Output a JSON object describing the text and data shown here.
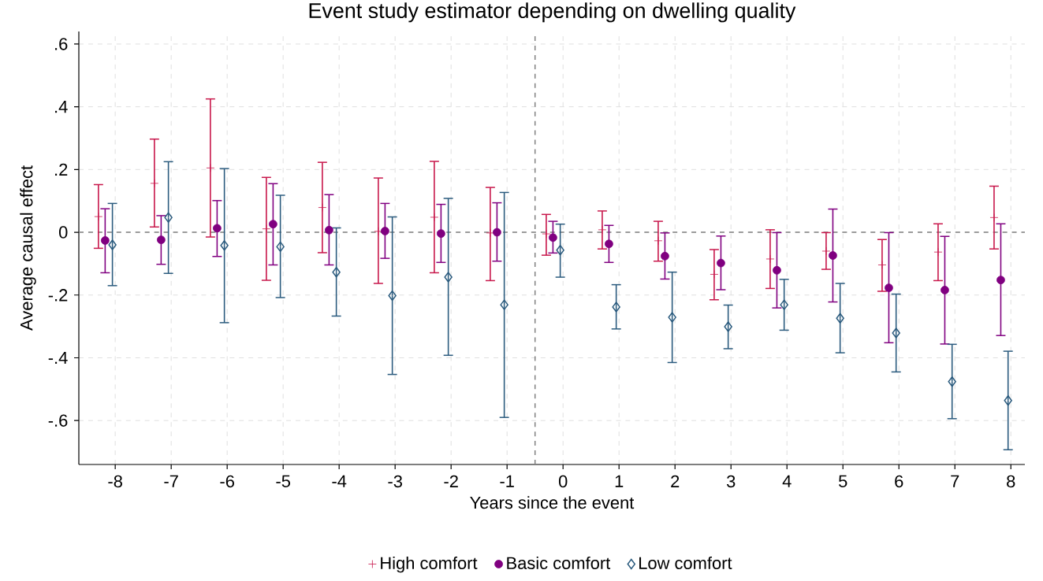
{
  "chart_data": {
    "type": "scatter",
    "title": "Event study estimator depending on dwelling quality",
    "xlabel": "Years since the event",
    "ylabel": "Average causal effect",
    "series": [
      {
        "name": "High comfort",
        "color": "#c8174b",
        "marker": "cross",
        "x": [
          -8.3,
          -7.3,
          -6.3,
          -5.3,
          -4.3,
          -3.3,
          -2.3,
          -1.3,
          -0.3,
          0.7,
          1.7,
          2.7,
          3.7,
          4.7,
          5.7,
          6.7,
          7.7
        ],
        "values": [
          0.05,
          0.156,
          0.205,
          0.011,
          0.079,
          0.003,
          0.048,
          -0.002,
          -0.005,
          0.008,
          -0.027,
          -0.134,
          -0.085,
          -0.06,
          -0.104,
          -0.063,
          0.047
        ],
        "errors": [
          [
            -0.051,
            0.152
          ],
          [
            0.017,
            0.297
          ],
          [
            -0.015,
            0.425
          ],
          [
            -0.153,
            0.175
          ],
          [
            -0.065,
            0.223
          ],
          [
            -0.163,
            0.173
          ],
          [
            -0.129,
            0.226
          ],
          [
            -0.154,
            0.143
          ],
          [
            -0.073,
            0.057
          ],
          [
            -0.053,
            0.068
          ],
          [
            -0.092,
            0.035
          ],
          [
            -0.215,
            -0.055
          ],
          [
            -0.179,
            0.008
          ],
          [
            -0.118,
            -0.001
          ],
          [
            -0.188,
            -0.023
          ],
          [
            -0.154,
            0.027
          ],
          [
            -0.053,
            0.147
          ]
        ]
      },
      {
        "name": "Basic comfort",
        "color": "#800080",
        "marker": "circle",
        "x": [
          -8.18,
          -7.18,
          -6.18,
          -5.18,
          -4.18,
          -3.18,
          -2.18,
          -1.18,
          -0.18,
          0.82,
          1.82,
          2.82,
          3.82,
          4.82,
          5.82,
          6.82,
          7.82
        ],
        "values": [
          -0.026,
          -0.024,
          0.013,
          0.026,
          0.007,
          0.004,
          -0.004,
          0.0,
          -0.017,
          -0.037,
          -0.076,
          -0.098,
          -0.121,
          -0.074,
          -0.177,
          -0.184,
          -0.152
        ],
        "errors": [
          [
            -0.129,
            0.075
          ],
          [
            -0.102,
            0.053
          ],
          [
            -0.077,
            0.101
          ],
          [
            -0.104,
            0.155
          ],
          [
            -0.104,
            0.12
          ],
          [
            -0.083,
            0.092
          ],
          [
            -0.096,
            0.089
          ],
          [
            -0.092,
            0.094
          ],
          [
            -0.066,
            0.035
          ],
          [
            -0.096,
            0.022
          ],
          [
            -0.149,
            -0.002
          ],
          [
            -0.183,
            -0.012
          ],
          [
            -0.241,
            -0.001
          ],
          [
            -0.222,
            0.074
          ],
          [
            -0.352,
            -0.001
          ],
          [
            -0.356,
            -0.013
          ],
          [
            -0.329,
            0.027
          ]
        ]
      },
      {
        "name": "Low comfort",
        "color": "#2b5b7e",
        "marker": "diamond",
        "x": [
          -8.05,
          -7.05,
          -6.05,
          -5.05,
          -4.05,
          -3.05,
          -2.05,
          -1.05,
          -0.05,
          0.95,
          1.95,
          2.95,
          3.95,
          4.95,
          5.95,
          6.95,
          7.95
        ],
        "values": [
          -0.04,
          0.047,
          -0.042,
          -0.046,
          -0.127,
          -0.202,
          -0.143,
          -0.231,
          -0.057,
          -0.238,
          -0.271,
          -0.301,
          -0.231,
          -0.274,
          -0.321,
          -0.476,
          -0.536
        ],
        "errors": [
          [
            -0.17,
            0.092
          ],
          [
            -0.131,
            0.225
          ],
          [
            -0.288,
            0.203
          ],
          [
            -0.208,
            0.118
          ],
          [
            -0.267,
            0.014
          ],
          [
            -0.453,
            0.049
          ],
          [
            -0.392,
            0.108
          ],
          [
            -0.59,
            0.127
          ],
          [
            -0.143,
            0.026
          ],
          [
            -0.308,
            -0.167
          ],
          [
            -0.415,
            -0.127
          ],
          [
            -0.371,
            -0.232
          ],
          [
            -0.312,
            -0.15
          ],
          [
            -0.384,
            -0.163
          ],
          [
            -0.445,
            -0.197
          ],
          [
            -0.594,
            -0.357
          ],
          [
            -0.693,
            -0.379
          ]
        ]
      }
    ],
    "xlim": [
      -8.65,
      8.25
    ],
    "ylim": [
      -0.74,
      0.64
    ],
    "xticks": [
      -8,
      -7,
      -6,
      -5,
      -4,
      -3,
      -2,
      -1,
      0,
      1,
      2,
      3,
      4,
      5,
      6,
      7,
      8
    ],
    "yticks": [
      {
        "value": -0.6,
        "label": "-.6"
      },
      {
        "value": -0.4,
        "label": "-.4"
      },
      {
        "value": -0.2,
        "label": "-.2"
      },
      0,
      {
        "value": 0.2,
        "label": ".2"
      },
      {
        "value": 0.4,
        "label": ".4"
      },
      {
        "value": 0.6,
        "label": ".6"
      }
    ],
    "ref_lines": [
      {
        "axis": "y",
        "value": 0,
        "color": "#808080",
        "line_style": "dashed"
      },
      {
        "axis": "x",
        "value": -0.5,
        "color": "#808080",
        "line_style": "dashed"
      }
    ],
    "grid": true,
    "legend": "bottom"
  }
}
